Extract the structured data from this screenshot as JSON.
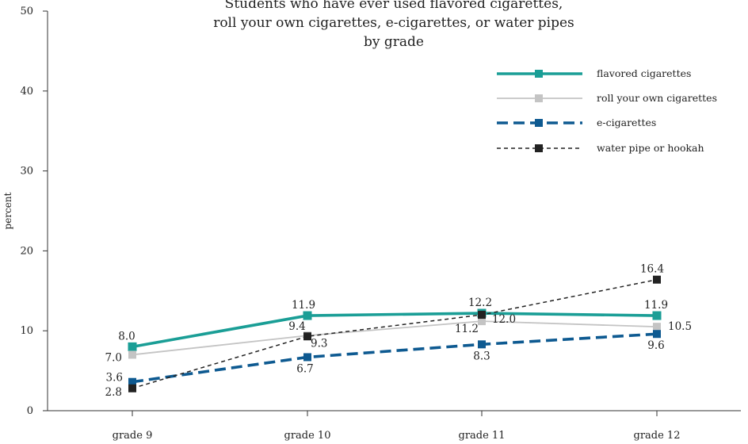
{
  "chart_data": {
    "type": "line",
    "title": "Students who have ever used flavored cigarettes, roll your own cigarettes, e-cigarettes, or water pipes by grade",
    "title_lines": [
      "Students who have ever used flavored cigarettes,",
      "roll your own cigarettes, e-cigarettes, or water pipes",
      "by grade"
    ],
    "xlabel": "",
    "ylabel": "percent",
    "categories": [
      "grade 9",
      "grade 10",
      "grade 11",
      "grade 12"
    ],
    "ylim": [
      0,
      50
    ],
    "yticks": [
      0,
      10,
      20,
      30,
      40,
      50
    ],
    "grid": false,
    "legend_position": "top-right",
    "series": [
      {
        "name": "flavored cigarettes",
        "values": [
          8.0,
          11.9,
          12.2,
          11.9
        ],
        "labels": [
          "8.0",
          "11.9",
          "12.2",
          "11.9"
        ],
        "color": "#1a9e96",
        "style": "solid-thick"
      },
      {
        "name": "roll your own cigarettes",
        "values": [
          7.0,
          9.4,
          11.2,
          10.5
        ],
        "labels": [
          "7.0",
          "9.4",
          "11.2",
          "10.5"
        ],
        "color": "#c4c4c4",
        "style": "solid-thin"
      },
      {
        "name": "e-cigarettes",
        "values": [
          3.6,
          6.7,
          8.3,
          9.6
        ],
        "labels": [
          "3.6",
          "6.7",
          "8.3",
          "9.6"
        ],
        "color": "#0e5a91",
        "style": "dashed-thick"
      },
      {
        "name": "water pipe or hookah",
        "values": [
          2.8,
          9.3,
          12.0,
          16.4
        ],
        "labels": [
          "2.8",
          "9.3",
          "12.0",
          "16.4"
        ],
        "color": "#222222",
        "style": "dashed-thin"
      }
    ]
  }
}
